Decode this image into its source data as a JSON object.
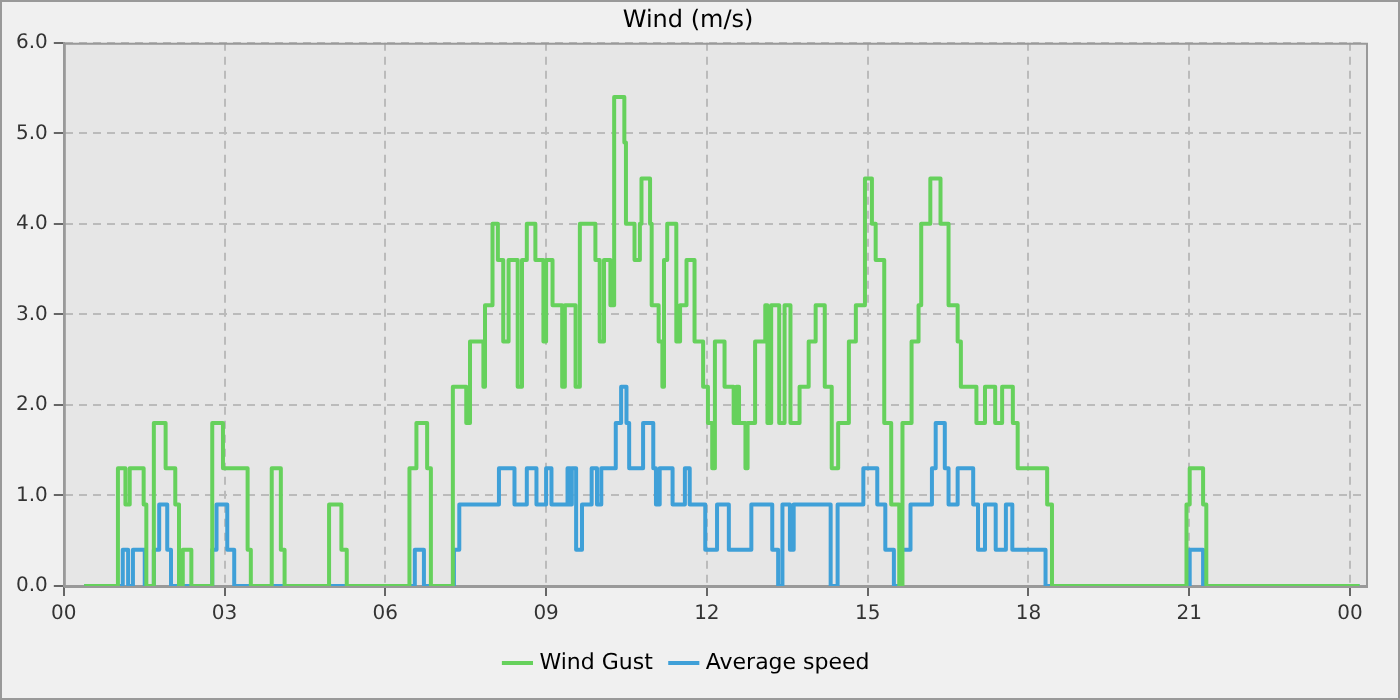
{
  "chart_data": {
    "type": "step",
    "title": "Wind (m/s)",
    "xlim": [
      0,
      24.3
    ],
    "xticks": [
      {
        "value": 0,
        "label": "00"
      },
      {
        "value": 3,
        "label": "03"
      },
      {
        "value": 6,
        "label": "06"
      },
      {
        "value": 9,
        "label": "09"
      },
      {
        "value": 12,
        "label": "12"
      },
      {
        "value": 15,
        "label": "15"
      },
      {
        "value": 18,
        "label": "18"
      },
      {
        "value": 21,
        "label": "21"
      },
      {
        "value": 24,
        "label": "00"
      }
    ],
    "ylim": [
      0,
      6
    ],
    "yticks": [
      {
        "value": 0,
        "label": "0.0"
      },
      {
        "value": 1,
        "label": "1.0"
      },
      {
        "value": 2,
        "label": "2.0"
      },
      {
        "value": 3,
        "label": "3.0"
      },
      {
        "value": 4,
        "label": "4.0"
      },
      {
        "value": 5,
        "label": "5.0"
      },
      {
        "value": 6,
        "label": "6.0"
      }
    ],
    "grid": true,
    "legend": "bottom",
    "marker": "none",
    "line_style": "solid",
    "series": [
      {
        "name": "Wind Gust",
        "color": "#66d15c",
        "x": [
          0.38,
          1.01,
          1.15,
          1.23,
          1.49,
          1.54,
          1.68,
          1.9,
          2.08,
          2.15,
          2.22,
          2.38,
          2.77,
          2.97,
          3.43,
          3.49,
          3.88,
          4.05,
          4.12,
          4.95,
          5.18,
          5.28,
          6.45,
          6.58,
          6.78,
          6.85,
          7.26,
          7.51,
          7.58,
          7.83,
          7.86,
          8.0,
          8.1,
          8.2,
          8.3,
          8.47,
          8.55,
          8.64,
          8.8,
          8.95,
          9.0,
          9.12,
          9.3,
          9.35,
          9.55,
          9.63,
          9.92,
          10.0,
          10.08,
          10.2,
          10.27,
          10.46,
          10.49,
          10.65,
          10.75,
          10.78,
          10.94,
          10.97,
          11.1,
          11.17,
          11.2,
          11.26,
          11.43,
          11.5,
          11.62,
          11.77,
          11.93,
          12.02,
          12.1,
          12.15,
          12.33,
          12.5,
          12.55,
          12.6,
          12.72,
          12.76,
          12.9,
          13.09,
          13.13,
          13.2,
          13.35,
          13.45,
          13.56,
          13.73,
          13.9,
          14.03,
          14.2,
          14.33,
          14.45,
          14.65,
          14.78,
          14.95,
          15.08,
          15.15,
          15.31,
          15.44,
          15.59,
          15.65,
          15.82,
          15.95,
          16.0,
          16.17,
          16.36,
          16.51,
          16.68,
          16.74,
          17.03,
          17.19,
          17.38,
          17.51,
          17.71,
          17.8,
          18.35,
          18.44,
          20.95,
          21.01,
          21.26,
          21.32,
          24.18
        ],
        "values": [
          0,
          1.3,
          0.9,
          1.3,
          0.9,
          0,
          1.8,
          1.3,
          0.9,
          0,
          0.4,
          0,
          1.8,
          1.3,
          0.4,
          0,
          1.3,
          0.4,
          0,
          0.9,
          0.4,
          0,
          1.3,
          1.8,
          1.3,
          0,
          2.2,
          1.8,
          2.7,
          2.2,
          3.1,
          4.0,
          3.6,
          2.7,
          3.6,
          2.2,
          3.6,
          4.0,
          3.6,
          2.7,
          3.6,
          3.1,
          2.2,
          3.1,
          2.2,
          4.0,
          3.6,
          2.7,
          3.6,
          3.1,
          5.4,
          4.9,
          4.0,
          3.6,
          4.0,
          4.5,
          4.0,
          3.1,
          2.7,
          2.2,
          3.6,
          4.0,
          2.7,
          3.1,
          3.6,
          2.7,
          2.2,
          1.8,
          1.3,
          2.7,
          2.2,
          1.8,
          2.2,
          1.8,
          1.3,
          1.8,
          2.7,
          3.1,
          1.8,
          3.1,
          1.8,
          3.1,
          1.8,
          2.2,
          2.7,
          3.1,
          2.2,
          1.3,
          1.8,
          2.7,
          3.1,
          4.5,
          4.0,
          3.6,
          1.8,
          0.9,
          0,
          1.8,
          2.7,
          3.1,
          4.0,
          4.5,
          4.0,
          3.1,
          2.7,
          2.2,
          1.8,
          2.2,
          1.8,
          2.2,
          1.8,
          1.3,
          0.9,
          0,
          0.9,
          1.3,
          0.9,
          0,
          0
        ]
      },
      {
        "name": "Average speed",
        "color": "#3fa0d8",
        "x": [
          0.38,
          1.1,
          1.2,
          1.29,
          1.51,
          1.68,
          1.78,
          1.93,
          2.0,
          2.77,
          2.85,
          3.05,
          3.18,
          6.55,
          6.72,
          7.28,
          7.38,
          8.12,
          8.41,
          8.64,
          8.82,
          9.0,
          9.1,
          9.4,
          9.45,
          9.48,
          9.56,
          9.67,
          9.85,
          9.95,
          10.03,
          10.3,
          10.4,
          10.5,
          10.55,
          10.81,
          11.0,
          11.05,
          11.12,
          11.36,
          11.59,
          11.68,
          11.97,
          12.19,
          12.41,
          12.83,
          13.22,
          13.33,
          13.41,
          13.55,
          13.62,
          14.31,
          14.44,
          14.92,
          15.18,
          15.33,
          15.49,
          15.62,
          15.8,
          16.2,
          16.27,
          16.44,
          16.51,
          16.68,
          16.97,
          17.06,
          17.19,
          17.39,
          17.58,
          17.7,
          18.32,
          21.01,
          21.26,
          24.18
        ],
        "values": [
          0,
          0.4,
          0,
          0.4,
          0,
          0.4,
          0.9,
          0.4,
          0,
          0.4,
          0.9,
          0.4,
          0,
          0.4,
          0,
          0.4,
          0.9,
          1.3,
          0.9,
          1.3,
          0.9,
          1.3,
          0.9,
          1.3,
          0.9,
          1.3,
          0.4,
          0.9,
          1.3,
          0.9,
          1.3,
          1.8,
          2.2,
          1.8,
          1.3,
          1.8,
          1.3,
          0.9,
          1.3,
          0.9,
          1.3,
          0.9,
          0.4,
          0.9,
          0.4,
          0.9,
          0.4,
          0,
          0.9,
          0.4,
          0.9,
          0,
          0.9,
          1.3,
          0.9,
          0.4,
          0,
          0.4,
          0.9,
          1.3,
          1.8,
          1.3,
          0.9,
          1.3,
          0.9,
          0.4,
          0.9,
          0.4,
          0.9,
          0.4,
          0,
          0.4,
          0,
          0
        ]
      }
    ]
  }
}
